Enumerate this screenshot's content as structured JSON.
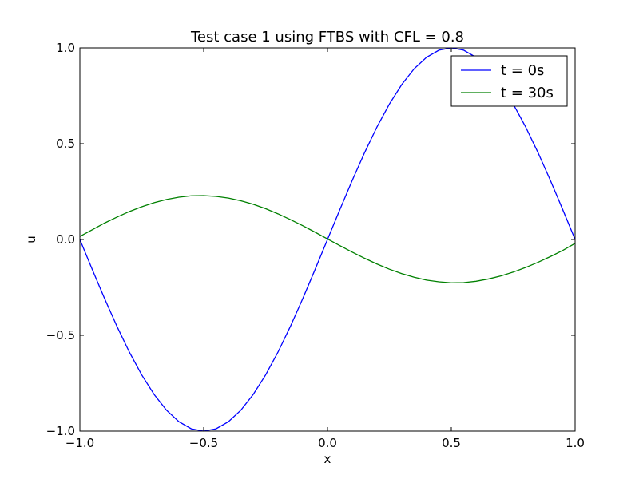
{
  "chart_data": {
    "type": "line",
    "title": "Test case 1 using FTBS with CFL = 0.8",
    "xlabel": "x",
    "ylabel": "u",
    "xlim": [
      -1.0,
      1.0
    ],
    "ylim": [
      -1.0,
      1.0
    ],
    "x_ticks": [
      -1.0,
      -0.5,
      0.0,
      0.5,
      1.0
    ],
    "x_tick_labels": [
      "−1.0",
      "−0.5",
      "0.0",
      "0.5",
      "1.0"
    ],
    "y_ticks": [
      -1.0,
      -0.5,
      0.0,
      0.5,
      1.0
    ],
    "y_tick_labels": [
      "−1.0",
      "−0.5",
      "0.0",
      "0.5",
      "1.0"
    ],
    "grid": false,
    "legend_position": "top-right",
    "series": [
      {
        "name": "t = 0s",
        "color": "#0000ff",
        "x": [
          -1.0,
          -0.95,
          -0.9,
          -0.85,
          -0.8,
          -0.75,
          -0.7,
          -0.65,
          -0.6,
          -0.55,
          -0.5,
          -0.45,
          -0.4,
          -0.35,
          -0.3,
          -0.25,
          -0.2,
          -0.15,
          -0.1,
          -0.05,
          0.0,
          0.05,
          0.1,
          0.15,
          0.2,
          0.25,
          0.3,
          0.35,
          0.4,
          0.45,
          0.5,
          0.55,
          0.6,
          0.65,
          0.7,
          0.75,
          0.8,
          0.85,
          0.9,
          0.95,
          1.0
        ],
        "y": [
          0.0,
          -0.156,
          -0.309,
          -0.454,
          -0.588,
          -0.707,
          -0.809,
          -0.891,
          -0.951,
          -0.988,
          -1.0,
          -0.988,
          -0.951,
          -0.891,
          -0.809,
          -0.707,
          -0.588,
          -0.454,
          -0.309,
          -0.156,
          0.0,
          0.156,
          0.309,
          0.454,
          0.588,
          0.707,
          0.809,
          0.891,
          0.951,
          0.988,
          1.0,
          0.988,
          0.951,
          0.891,
          0.809,
          0.707,
          0.588,
          0.454,
          0.309,
          0.156,
          0.0
        ]
      },
      {
        "name": "t = 30s",
        "color": "#008000",
        "x": [
          -1.0,
          -0.95,
          -0.9,
          -0.85,
          -0.8,
          -0.75,
          -0.7,
          -0.65,
          -0.6,
          -0.55,
          -0.5,
          -0.45,
          -0.4,
          -0.35,
          -0.3,
          -0.25,
          -0.2,
          -0.15,
          -0.1,
          -0.05,
          0.0,
          0.05,
          0.1,
          0.15,
          0.2,
          0.25,
          0.3,
          0.35,
          0.4,
          0.45,
          0.5,
          0.55,
          0.6,
          0.65,
          0.7,
          0.75,
          0.8,
          0.85,
          0.9,
          0.95,
          1.0
        ],
        "y": [
          0.016,
          0.051,
          0.086,
          0.117,
          0.146,
          0.171,
          0.192,
          0.209,
          0.221,
          0.228,
          0.229,
          0.225,
          0.216,
          0.202,
          0.184,
          0.161,
          0.134,
          0.104,
          0.072,
          0.038,
          0.003,
          -0.032,
          -0.066,
          -0.098,
          -0.128,
          -0.155,
          -0.178,
          -0.197,
          -0.212,
          -0.221,
          -0.226,
          -0.225,
          -0.218,
          -0.206,
          -0.19,
          -0.17,
          -0.146,
          -0.119,
          -0.089,
          -0.057,
          -0.02
        ]
      }
    ]
  }
}
